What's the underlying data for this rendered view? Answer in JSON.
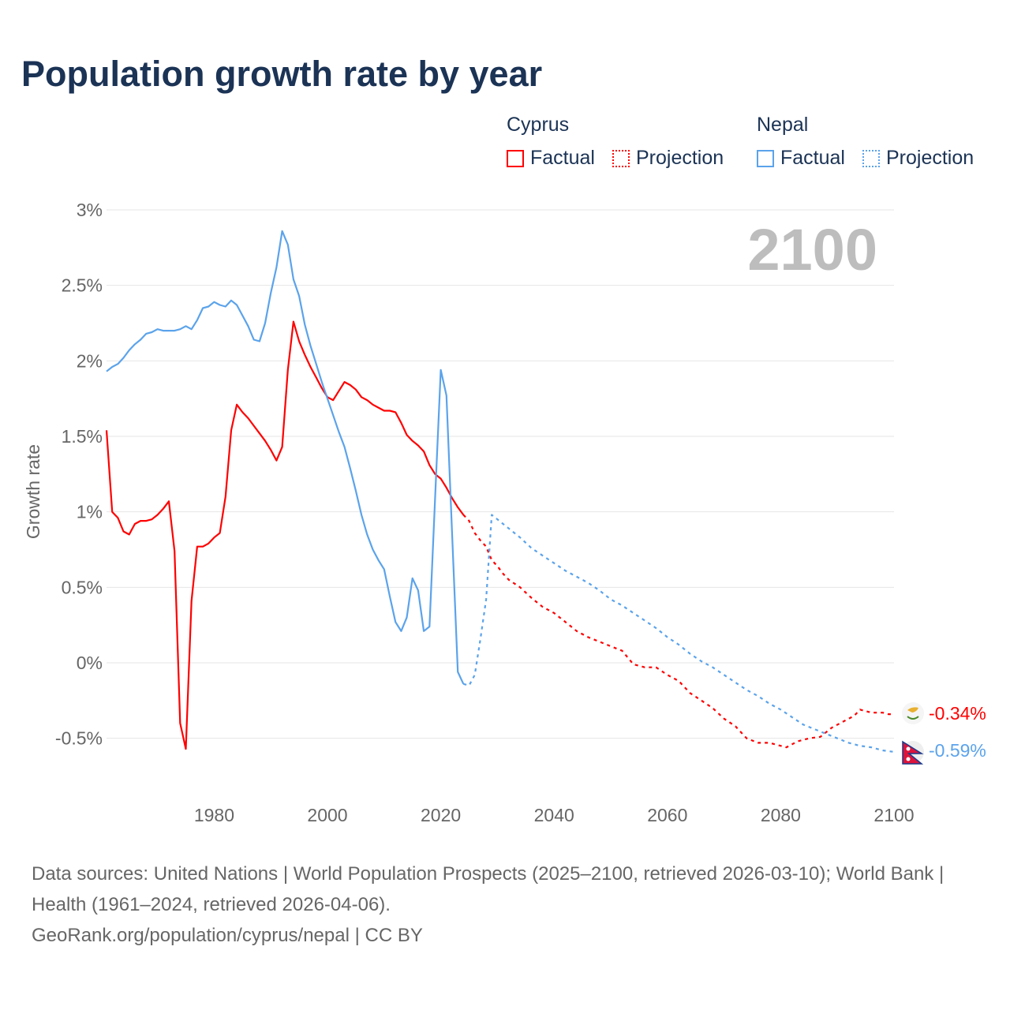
{
  "title": "Population growth rate by year",
  "legend": {
    "groups": [
      {
        "name": "Cyprus",
        "factual": "Factual",
        "projection": "Projection",
        "color": "#ff0000"
      },
      {
        "name": "Nepal",
        "factual": "Factual",
        "projection": "Projection",
        "color": "#5ba3eb"
      }
    ]
  },
  "year_watermark": "2100",
  "end_labels": {
    "cyprus": "-0.34%",
    "nepal": "-0.59%"
  },
  "footer": {
    "sources": "Data sources: United Nations | World Population Prospects (2025–2100, retrieved 2026-03-10); World Bank | Health (1961–2024, retrieved 2026-04-06).",
    "link": "GeoRank.org/population/cyprus/nepal | CC BY"
  },
  "chart_data": {
    "type": "line",
    "title": "Population growth rate by year",
    "xlabel": "",
    "ylabel": "Growth rate",
    "xlim": [
      1961,
      2100
    ],
    "ylim": [
      -0.6,
      3.1
    ],
    "x_ticks": [
      1980,
      2000,
      2020,
      2040,
      2060,
      2080,
      2100
    ],
    "y_ticks": [
      {
        "v": 3,
        "label": "3%"
      },
      {
        "v": 2.5,
        "label": "2.5%"
      },
      {
        "v": 2,
        "label": "2%"
      },
      {
        "v": 1.5,
        "label": "1.5%"
      },
      {
        "v": 1,
        "label": "1%"
      },
      {
        "v": 0.5,
        "label": "0.5%"
      },
      {
        "v": 0,
        "label": "0%"
      },
      {
        "v": -0.5,
        "label": "-0.5%"
      }
    ],
    "grid": true,
    "legend_position": "top-right",
    "series": [
      {
        "name": "Cyprus Factual",
        "color": "#ff0000",
        "dashed": false,
        "start_year": 1961,
        "values": [
          1.54,
          1.0,
          0.96,
          0.87,
          0.85,
          0.92,
          0.94,
          0.94,
          0.95,
          0.98,
          1.02,
          1.07,
          0.74,
          -0.4,
          -0.57,
          0.41,
          0.77,
          0.77,
          0.79,
          0.83,
          0.86,
          1.1,
          1.54,
          1.71,
          1.66,
          1.62,
          1.57,
          1.52,
          1.47,
          1.41,
          1.34,
          1.43,
          1.94,
          2.26,
          2.13,
          2.04,
          1.96,
          1.89,
          1.82,
          1.76,
          1.74,
          1.8,
          1.86,
          1.84,
          1.81,
          1.76,
          1.74,
          1.71,
          1.69,
          1.67,
          1.67,
          1.66,
          1.59,
          1.51,
          1.47,
          1.44,
          1.4,
          1.31,
          1.25,
          1.22,
          1.16,
          1.09,
          1.03,
          0.98
        ]
      },
      {
        "name": "Nepal Factual",
        "color": "#5ba3eb",
        "dashed": false,
        "start_year": 1961,
        "values": [
          1.93,
          1.96,
          1.98,
          2.02,
          2.07,
          2.11,
          2.14,
          2.18,
          2.19,
          2.21,
          2.2,
          2.2,
          2.2,
          2.21,
          2.23,
          2.21,
          2.27,
          2.35,
          2.36,
          2.39,
          2.37,
          2.36,
          2.4,
          2.37,
          2.3,
          2.23,
          2.14,
          2.13,
          2.25,
          2.45,
          2.62,
          2.86,
          2.77,
          2.54,
          2.43,
          2.24,
          2.1,
          1.98,
          1.86,
          1.75,
          1.64,
          1.53,
          1.43,
          1.29,
          1.14,
          0.98,
          0.85,
          0.75,
          0.68,
          0.62,
          0.44,
          0.27,
          0.21,
          0.3,
          0.56,
          0.48,
          0.21,
          0.24,
          1.09,
          1.94,
          1.77,
          0.85,
          -0.06,
          -0.14
        ]
      },
      {
        "name": "Cyprus Projection",
        "color": "#ff0000",
        "dashed": true,
        "points": [
          [
            2024,
            0.98
          ],
          [
            2025,
            0.94
          ],
          [
            2026,
            0.86
          ],
          [
            2027,
            0.81
          ],
          [
            2028,
            0.77
          ],
          [
            2029,
            0.68
          ],
          [
            2030,
            0.64
          ],
          [
            2031,
            0.59
          ],
          [
            2032,
            0.55
          ],
          [
            2034,
            0.5
          ],
          [
            2036,
            0.43
          ],
          [
            2038,
            0.37
          ],
          [
            2040,
            0.33
          ],
          [
            2042,
            0.27
          ],
          [
            2044,
            0.21
          ],
          [
            2046,
            0.17
          ],
          [
            2048,
            0.14
          ],
          [
            2050,
            0.11
          ],
          [
            2052,
            0.08
          ],
          [
            2054,
            -0.01
          ],
          [
            2056,
            -0.03
          ],
          [
            2058,
            -0.03
          ],
          [
            2060,
            -0.08
          ],
          [
            2062,
            -0.12
          ],
          [
            2064,
            -0.2
          ],
          [
            2066,
            -0.25
          ],
          [
            2068,
            -0.3
          ],
          [
            2070,
            -0.37
          ],
          [
            2072,
            -0.42
          ],
          [
            2074,
            -0.5
          ],
          [
            2076,
            -0.53
          ],
          [
            2078,
            -0.53
          ],
          [
            2080,
            -0.55
          ],
          [
            2081,
            -0.56
          ],
          [
            2083,
            -0.52
          ],
          [
            2085,
            -0.5
          ],
          [
            2087,
            -0.49
          ],
          [
            2089,
            -0.43
          ],
          [
            2091,
            -0.39
          ],
          [
            2093,
            -0.35
          ],
          [
            2094,
            -0.31
          ],
          [
            2096,
            -0.33
          ],
          [
            2098,
            -0.33
          ],
          [
            2099,
            -0.34
          ],
          [
            2100,
            -0.34
          ]
        ]
      },
      {
        "name": "Nepal Projection",
        "color": "#5ba3eb",
        "dashed": true,
        "points": [
          [
            2024,
            -0.14
          ],
          [
            2025,
            -0.15
          ],
          [
            2026,
            -0.08
          ],
          [
            2027,
            0.16
          ],
          [
            2028,
            0.42
          ],
          [
            2029,
            0.98
          ],
          [
            2030,
            0.95
          ],
          [
            2032,
            0.89
          ],
          [
            2034,
            0.83
          ],
          [
            2036,
            0.76
          ],
          [
            2038,
            0.71
          ],
          [
            2040,
            0.66
          ],
          [
            2042,
            0.61
          ],
          [
            2044,
            0.57
          ],
          [
            2046,
            0.53
          ],
          [
            2048,
            0.48
          ],
          [
            2050,
            0.42
          ],
          [
            2052,
            0.38
          ],
          [
            2054,
            0.33
          ],
          [
            2056,
            0.28
          ],
          [
            2058,
            0.23
          ],
          [
            2060,
            0.17
          ],
          [
            2062,
            0.12
          ],
          [
            2064,
            0.06
          ],
          [
            2066,
            0.01
          ],
          [
            2068,
            -0.03
          ],
          [
            2070,
            -0.08
          ],
          [
            2072,
            -0.13
          ],
          [
            2074,
            -0.18
          ],
          [
            2076,
            -0.22
          ],
          [
            2078,
            -0.27
          ],
          [
            2080,
            -0.31
          ],
          [
            2082,
            -0.36
          ],
          [
            2084,
            -0.41
          ],
          [
            2086,
            -0.44
          ],
          [
            2088,
            -0.47
          ],
          [
            2090,
            -0.5
          ],
          [
            2092,
            -0.53
          ],
          [
            2094,
            -0.55
          ],
          [
            2096,
            -0.56
          ],
          [
            2098,
            -0.58
          ],
          [
            2100,
            -0.59
          ]
        ]
      }
    ]
  }
}
